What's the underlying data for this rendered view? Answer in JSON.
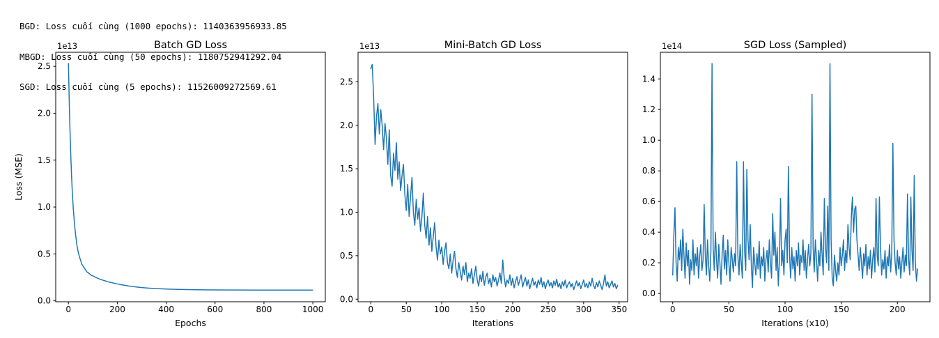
{
  "console_output": {
    "lines": [
      "BGD: Loss cuối cùng (1000 epochs): 1140363956933.85",
      "MBGD: Loss cuối cùng (50 epochs): 1180752941292.04",
      "SGD: Loss cuối cùng (5 epochs): 11526009272569.61"
    ]
  },
  "colors": {
    "line": "#1f77b4",
    "axis": "#000000",
    "text": "#000000",
    "background": "#ffffff"
  },
  "chart_data": [
    {
      "type": "line",
      "title": "Batch GD Loss",
      "xlabel": "Epochs",
      "ylabel": "Loss (MSE)",
      "offset_text": "1e13",
      "grid": false,
      "legend": null,
      "line_color": "#1f77b4",
      "xlim": [
        -52,
        1051
      ],
      "ylim": [
        -0.01,
        2.65
      ],
      "xticks": [
        0,
        200,
        400,
        600,
        800,
        1000
      ],
      "yticks": [
        0,
        0.5,
        1.0,
        1.5,
        2.0,
        2.5
      ],
      "ytick_labels": [
        "0.0",
        "0.5",
        "1.0",
        "1.5",
        "2.0",
        "2.5"
      ],
      "points": [
        [
          0,
          2.53
        ],
        [
          3,
          2.16
        ],
        [
          6,
          1.85
        ],
        [
          10,
          1.52
        ],
        [
          13,
          1.32
        ],
        [
          16,
          1.15
        ],
        [
          20,
          0.98
        ],
        [
          25,
          0.81
        ],
        [
          30,
          0.69
        ],
        [
          35,
          0.59
        ],
        [
          40,
          0.52
        ],
        [
          45,
          0.47
        ],
        [
          50,
          0.43
        ],
        [
          55,
          0.39
        ],
        [
          60,
          0.37
        ],
        [
          65,
          0.35
        ],
        [
          70,
          0.33
        ],
        [
          75,
          0.31
        ],
        [
          80,
          0.3
        ],
        [
          85,
          0.29
        ],
        [
          90,
          0.28
        ],
        [
          95,
          0.27
        ],
        [
          100,
          0.266
        ],
        [
          110,
          0.252
        ],
        [
          120,
          0.24
        ],
        [
          130,
          0.23
        ],
        [
          140,
          0.221
        ],
        [
          150,
          0.213
        ],
        [
          160,
          0.205
        ],
        [
          170,
          0.198
        ],
        [
          180,
          0.192
        ],
        [
          190,
          0.186
        ],
        [
          200,
          0.18
        ],
        [
          220,
          0.17
        ],
        [
          240,
          0.161
        ],
        [
          260,
          0.153
        ],
        [
          280,
          0.147
        ],
        [
          300,
          0.141
        ],
        [
          330,
          0.135
        ],
        [
          360,
          0.13
        ],
        [
          400,
          0.126
        ],
        [
          450,
          0.122
        ],
        [
          500,
          0.119
        ],
        [
          550,
          0.117
        ],
        [
          600,
          0.116
        ],
        [
          650,
          0.115
        ],
        [
          700,
          0.115
        ],
        [
          750,
          0.114
        ],
        [
          800,
          0.114
        ],
        [
          850,
          0.114
        ],
        [
          900,
          0.114
        ],
        [
          950,
          0.114
        ],
        [
          999,
          0.114
        ]
      ]
    },
    {
      "type": "line",
      "title": "Mini-Batch GD Loss",
      "xlabel": "Iterations",
      "ylabel": null,
      "offset_text": "1e13",
      "grid": false,
      "legend": null,
      "line_color": "#1f77b4",
      "xlim": [
        -18,
        362
      ],
      "ylim": [
        -0.03,
        2.84
      ],
      "xticks": [
        0,
        50,
        100,
        150,
        200,
        250,
        300,
        350
      ],
      "yticks": [
        0,
        0.5,
        1.0,
        1.5,
        2.0,
        2.5
      ],
      "ytick_labels": [
        "0.0",
        "0.5",
        "1.0",
        "1.5",
        "2.0",
        "2.5"
      ],
      "x_start": 0,
      "x_step": 2,
      "y": [
        2.65,
        2.7,
        2.32,
        1.78,
        2.1,
        2.25,
        1.9,
        2.18,
        2.0,
        1.72,
        2.02,
        1.85,
        1.55,
        1.95,
        1.42,
        1.3,
        1.68,
        1.48,
        1.8,
        1.38,
        1.58,
        1.25,
        1.42,
        1.55,
        1.2,
        1.02,
        1.32,
        0.95,
        1.18,
        1.4,
        1.0,
        0.85,
        1.15,
        0.92,
        1.05,
        0.78,
        0.95,
        1.22,
        0.85,
        0.7,
        0.95,
        0.62,
        0.82,
        0.55,
        0.72,
        0.88,
        0.6,
        0.45,
        0.68,
        0.52,
        0.6,
        0.4,
        0.55,
        0.65,
        0.42,
        0.35,
        0.52,
        0.3,
        0.45,
        0.55,
        0.35,
        0.25,
        0.42,
        0.32,
        0.22,
        0.38,
        0.28,
        0.42,
        0.2,
        0.3,
        0.24,
        0.35,
        0.18,
        0.28,
        0.38,
        0.22,
        0.15,
        0.28,
        0.2,
        0.32,
        0.16,
        0.25,
        0.3,
        0.18,
        0.24,
        0.14,
        0.28,
        0.2,
        0.25,
        0.15,
        0.22,
        0.3,
        0.18,
        0.45,
        0.25,
        0.14,
        0.22,
        0.18,
        0.28,
        0.16,
        0.24,
        0.13,
        0.2,
        0.26,
        0.16,
        0.22,
        0.28,
        0.14,
        0.2,
        0.25,
        0.15,
        0.22,
        0.12,
        0.18,
        0.24,
        0.16,
        0.2,
        0.13,
        0.22,
        0.17,
        0.25,
        0.14,
        0.2,
        0.12,
        0.18,
        0.22,
        0.15,
        0.19,
        0.13,
        0.21,
        0.16,
        0.23,
        0.14,
        0.18,
        0.12,
        0.2,
        0.15,
        0.22,
        0.13,
        0.17,
        0.2,
        0.14,
        0.18,
        0.11,
        0.16,
        0.21,
        0.15,
        0.19,
        0.12,
        0.17,
        0.22,
        0.14,
        0.18,
        0.13,
        0.2,
        0.15,
        0.24,
        0.16,
        0.12,
        0.19,
        0.14,
        0.21,
        0.16,
        0.11,
        0.18,
        0.28,
        0.15,
        0.2,
        0.13,
        0.17,
        0.21,
        0.14,
        0.18,
        0.12,
        0.16
      ]
    },
    {
      "type": "line",
      "title": "SGD Loss (Sampled)",
      "xlabel": "Iterations (x10)",
      "ylabel": null,
      "offset_text": "1e14",
      "grid": false,
      "legend": null,
      "line_color": "#1f77b4",
      "xlim": [
        -11,
        229
      ],
      "ylim": [
        -0.054,
        1.574
      ],
      "xticks": [
        0,
        50,
        100,
        150,
        200
      ],
      "yticks": [
        0,
        0.2,
        0.4,
        0.6,
        0.8,
        1.0,
        1.2,
        1.4
      ],
      "ytick_labels": [
        "0.0",
        "0.2",
        "0.4",
        "0.6",
        "0.8",
        "1.0",
        "1.2",
        "1.4"
      ],
      "x_start": 0,
      "x_step": 1,
      "y": [
        0.12,
        0.38,
        0.56,
        0.2,
        0.08,
        0.3,
        0.22,
        0.35,
        0.15,
        0.42,
        0.25,
        0.1,
        0.33,
        0.18,
        0.28,
        0.06,
        0.22,
        0.15,
        0.35,
        0.12,
        0.26,
        0.18,
        0.3,
        0.1,
        0.24,
        0.32,
        0.15,
        0.22,
        0.58,
        0.25,
        0.12,
        0.35,
        0.18,
        0.08,
        0.28,
        1.5,
        0.3,
        0.15,
        0.4,
        0.22,
        0.1,
        0.32,
        0.2,
        0.06,
        0.26,
        0.38,
        0.16,
        0.28,
        0.12,
        0.35,
        0.2,
        0.08,
        0.3,
        0.22,
        0.14,
        0.26,
        0.18,
        0.86,
        0.25,
        0.12,
        0.32,
        0.2,
        0.1,
        0.86,
        0.28,
        0.15,
        0.81,
        0.35,
        0.22,
        0.45,
        0.18,
        0.04,
        0.3,
        0.2,
        0.12,
        0.26,
        0.16,
        0.34,
        0.1,
        0.24,
        0.18,
        0.3,
        0.08,
        0.22,
        0.28,
        0.14,
        0.35,
        0.2,
        0.1,
        0.52,
        0.25,
        0.4,
        0.15,
        0.3,
        0.05,
        0.22,
        0.62,
        0.18,
        0.28,
        0.12,
        0.35,
        0.42,
        0.2,
        0.83,
        0.25,
        0.1,
        0.3,
        0.16,
        0.24,
        0.08,
        0.28,
        0.18,
        0.33,
        0.12,
        0.25,
        0.2,
        0.35,
        0.15,
        0.28,
        0.1,
        0.22,
        0.32,
        0.18,
        0.26,
        1.3,
        0.3,
        0.14,
        0.35,
        0.22,
        0.08,
        0.28,
        0.18,
        0.4,
        0.25,
        0.12,
        0.62,
        0.3,
        0.2,
        0.57,
        0.15,
        1.5,
        0.35,
        0.1,
        0.05,
        0.25,
        0.15,
        0.08,
        0.2,
        0.12,
        0.3,
        0.18,
        0.25,
        0.35,
        0.15,
        0.28,
        0.2,
        0.45,
        0.3,
        0.22,
        0.5,
        0.63,
        0.4,
        0.55,
        0.57,
        0.35,
        0.25,
        0.15,
        0.3,
        0.2,
        0.1,
        0.26,
        0.18,
        0.32,
        0.12,
        0.24,
        0.16,
        0.28,
        0.1,
        0.22,
        0.3,
        0.14,
        0.62,
        0.25,
        0.18,
        0.63,
        0.3,
        0.12,
        0.22,
        0.16,
        0.28,
        0.1,
        0.24,
        0.18,
        0.32,
        0.14,
        0.26,
        0.98,
        0.35,
        0.2,
        0.12,
        0.28,
        0.16,
        0.24,
        0.1,
        0.2,
        0.3,
        0.14,
        0.25,
        0.18,
        0.65,
        0.22,
        0.12,
        0.63,
        0.28,
        0.15,
        0.77,
        0.2,
        0.08,
        0.16
      ]
    }
  ]
}
